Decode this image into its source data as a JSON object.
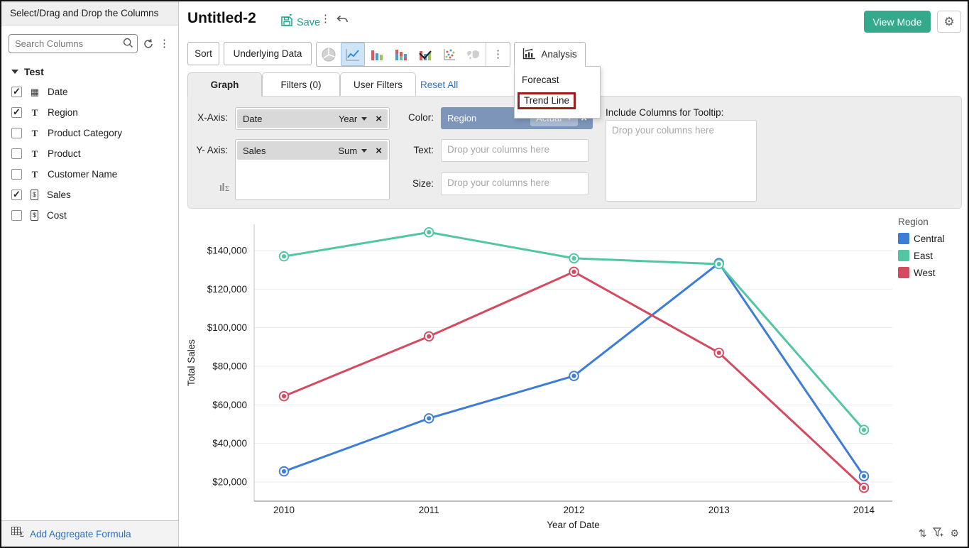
{
  "sidebar": {
    "header": "Select/Drag and Drop the Columns",
    "search_placeholder": "Search Columns",
    "tree_root": "Test",
    "columns": [
      {
        "label": "Date",
        "type": "date",
        "checked": true
      },
      {
        "label": "Region",
        "type": "text",
        "checked": true
      },
      {
        "label": "Product Category",
        "type": "text",
        "checked": false
      },
      {
        "label": "Product",
        "type": "text",
        "checked": false
      },
      {
        "label": "Customer Name",
        "type": "text",
        "checked": false
      },
      {
        "label": "Sales",
        "type": "currency",
        "checked": true
      },
      {
        "label": "Cost",
        "type": "currency",
        "checked": false
      }
    ],
    "footer_link": "Add Aggregate Formula"
  },
  "header": {
    "title": "Untitled-2",
    "save_label": "Save",
    "view_mode_label": "View Mode"
  },
  "toolbar": {
    "sort_label": "Sort",
    "underlying_data_label": "Underlying Data",
    "chart_types": [
      "pie",
      "line",
      "bar",
      "stacked-bar",
      "combo",
      "scatter",
      "map"
    ],
    "selected_chart_type": "line",
    "analysis_label": "Analysis",
    "analysis_menu": [
      "Forecast",
      "Trend Line"
    ],
    "highlighted_menu_item": "Trend Line"
  },
  "tabs": {
    "graph": "Graph",
    "filters": "Filters (0)",
    "user_filters": "User Filters",
    "reset_all": "Reset All"
  },
  "shelves": {
    "x_axis": {
      "label": "X-Axis:",
      "field": "Date",
      "aggregate": "Year"
    },
    "y_axis": {
      "label": "Y- Axis:",
      "field": "Sales",
      "aggregate": "Sum"
    },
    "color": {
      "label": "Color:",
      "field": "Region",
      "aggregate": "Actual"
    },
    "text": {
      "label": "Text:",
      "placeholder": "Drop your columns here"
    },
    "size": {
      "label": "Size:",
      "placeholder": "Drop your columns here"
    },
    "tooltip": {
      "label": "Include Columns for Tooltip:",
      "placeholder": "Drop your columns here"
    }
  },
  "chart_data": {
    "type": "line",
    "xlabel": "Year of Date",
    "ylabel": "Total Sales",
    "categories": [
      "2010",
      "2011",
      "2012",
      "2013",
      "2014"
    ],
    "series": [
      {
        "name": "Central",
        "color": "#3d7cd7",
        "values": [
          25500,
          53000,
          75000,
          133500,
          23000
        ]
      },
      {
        "name": "East",
        "color": "#52c5a2",
        "values": [
          137000,
          149500,
          136000,
          133000,
          47000
        ]
      },
      {
        "name": "West",
        "color": "#d44a61",
        "values": [
          64500,
          95500,
          129000,
          87000,
          17000
        ]
      }
    ],
    "ylim": [
      10000,
      152000
    ],
    "yticks": [
      20000,
      40000,
      60000,
      80000,
      100000,
      120000,
      140000
    ],
    "ytick_labels": [
      "$20,000",
      "$40,000",
      "$60,000",
      "$80,000",
      "$100,000",
      "$120,000",
      "$140,000"
    ],
    "legend_title": "Region",
    "legend_position": "right",
    "grid": "horizontal"
  },
  "colors": {
    "accent_teal": "#35a98c",
    "link_blue": "#2f6fc4",
    "annotation_red": "#9b1f1f",
    "color_shelf_bg": "#7d95b9"
  }
}
